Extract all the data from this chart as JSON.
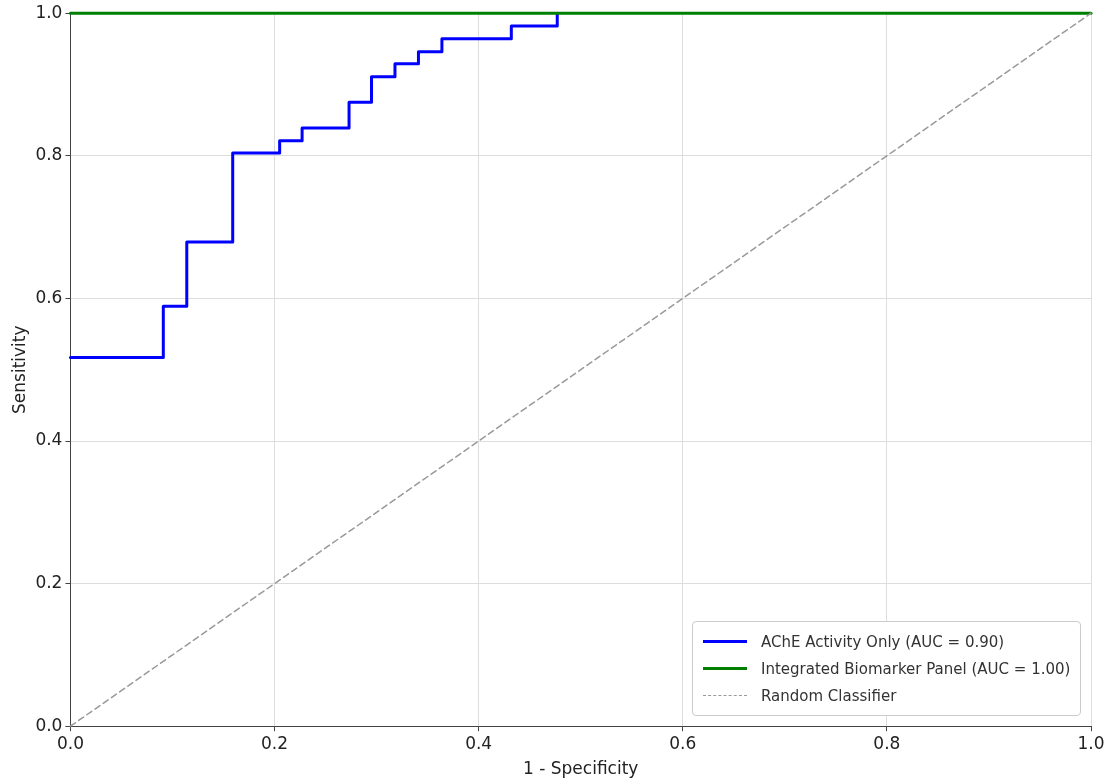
{
  "chart_data": {
    "type": "line",
    "xlabel": "1 - Specificity",
    "ylabel": "Sensitivity",
    "xlim": [
      0,
      1
    ],
    "ylim": [
      0,
      1
    ],
    "xticks": [
      {
        "value": 0,
        "label": "0.0"
      },
      0.2,
      0.4,
      0.6,
      0.8,
      {
        "value": 1,
        "label": "1.0"
      }
    ],
    "yticks": [
      {
        "value": 0,
        "label": "0.0"
      },
      0.2,
      0.4,
      0.6,
      0.8,
      {
        "value": 1,
        "label": "1.0"
      }
    ],
    "grid": true,
    "legend": "bottom right",
    "marker": "none",
    "series": [
      {
        "name": "AChE Activity Only (AUC = 0.90)",
        "type": "step",
        "color": "#0000ff",
        "x": [
          0,
          0.091,
          0.114,
          0.159,
          0.205,
          0.227,
          0.273,
          0.295,
          0.318,
          0.341,
          0.364,
          0.432,
          0.477
        ],
        "values": [
          0.517,
          0.589,
          0.679,
          0.804,
          0.821,
          0.839,
          0.875,
          0.911,
          0.929,
          0.946,
          0.964,
          0.982,
          1.0
        ]
      },
      {
        "name": "Integrated Biomarker Panel (AUC = 1.00)",
        "color": "#008000",
        "x": [
          0,
          1
        ],
        "values": [
          1,
          1
        ]
      },
      {
        "name": "Random Classifier",
        "color": "#999999",
        "line_style": "dashed",
        "x": [
          0,
          1
        ],
        "values": [
          0,
          1
        ]
      }
    ]
  }
}
